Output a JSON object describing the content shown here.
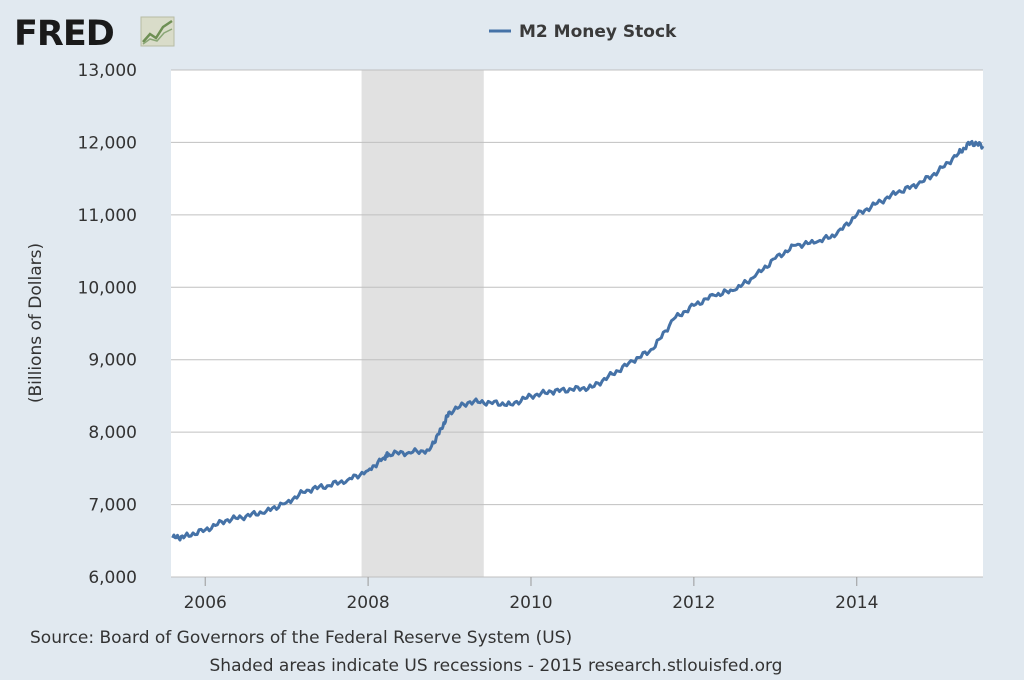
{
  "header": {
    "logo_text": "FRED",
    "logo_icon": "line-chart-icon"
  },
  "footer": {
    "source": "Source: Board of Governors of the Federal Reserve System (US)",
    "note": "Shaded areas indicate US recessions - 2015 research.stlouisfed.org"
  },
  "colors": {
    "series": "#4572a7",
    "recession": "#e1e1e1",
    "background": "#e1e9f0",
    "plot": "#ffffff",
    "grid": "#c0c0c0"
  },
  "chart_data": {
    "type": "line",
    "title": "",
    "xlabel": "",
    "ylabel": "(Billions of Dollars)",
    "legend": {
      "position": "top-center",
      "entries": [
        "M2 Money Stock"
      ]
    },
    "grid": true,
    "xlim": [
      2005.58,
      2015.55
    ],
    "ylim": [
      6000,
      13000
    ],
    "x_ticks": [
      2006,
      2008,
      2010,
      2012,
      2014
    ],
    "x_tick_labels": [
      "2006",
      "2008",
      "2010",
      "2012",
      "2014"
    ],
    "y_ticks": [
      6000,
      7000,
      8000,
      9000,
      10000,
      11000,
      12000,
      13000
    ],
    "y_tick_labels": [
      "6,000",
      "7,000",
      "8,000",
      "9,000",
      "10,000",
      "11,000",
      "12,000",
      "13,000"
    ],
    "recessions": [
      {
        "start": 2007.92,
        "end": 2009.42
      }
    ],
    "series": [
      {
        "name": "M2 Money Stock",
        "x": [
          2005.6,
          2005.75,
          2006.0,
          2006.25,
          2006.5,
          2006.75,
          2007.0,
          2007.25,
          2007.5,
          2007.75,
          2008.0,
          2008.2,
          2008.25,
          2008.5,
          2008.75,
          2008.9,
          2009.0,
          2009.25,
          2009.5,
          2009.75,
          2010.0,
          2010.25,
          2010.5,
          2010.75,
          2011.0,
          2011.25,
          2011.5,
          2011.75,
          2012.0,
          2012.25,
          2012.5,
          2012.75,
          2013.0,
          2013.25,
          2013.5,
          2013.75,
          2014.0,
          2014.25,
          2014.5,
          2014.75,
          2015.0,
          2015.25,
          2015.4,
          2015.55
        ],
        "y": [
          6540,
          6560,
          6650,
          6780,
          6840,
          6910,
          7030,
          7200,
          7260,
          7340,
          7470,
          7650,
          7700,
          7720,
          7750,
          8050,
          8280,
          8420,
          8410,
          8380,
          8500,
          8560,
          8590,
          8620,
          8800,
          8980,
          9150,
          9560,
          9750,
          9890,
          9960,
          10150,
          10400,
          10580,
          10620,
          10730,
          11000,
          11160,
          11310,
          11420,
          11600,
          11850,
          12000,
          11950
        ]
      }
    ]
  }
}
